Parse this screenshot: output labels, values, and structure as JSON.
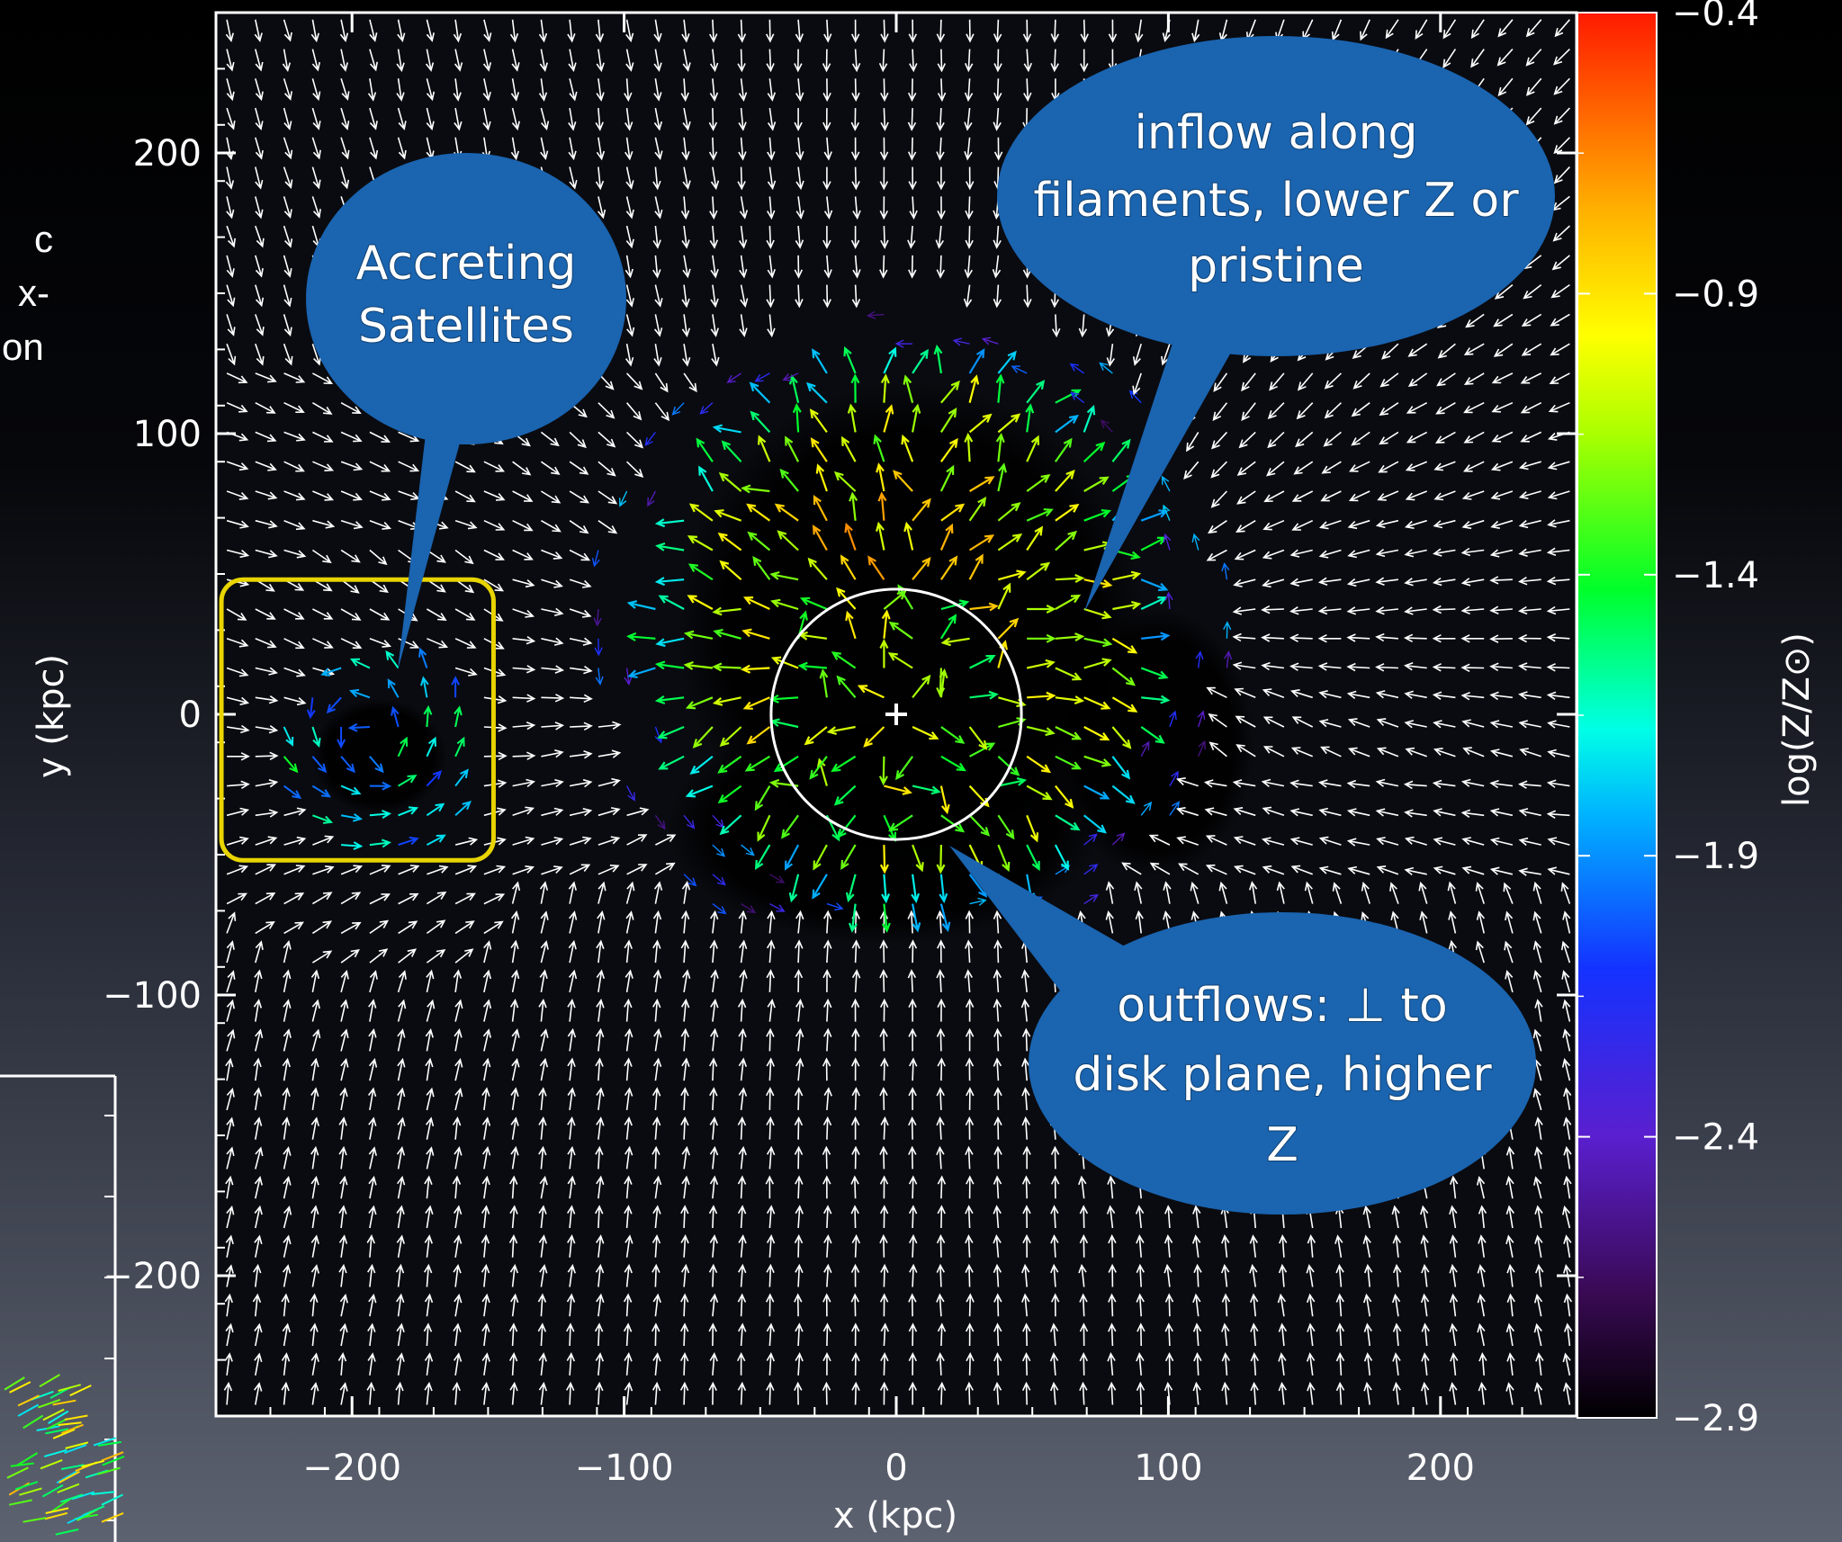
{
  "chart_data": {
    "type": "vector-field",
    "xlabel": "x (kpc)",
    "ylabel": "y (kpc)",
    "xlim": [
      -250,
      250
    ],
    "ylim": [
      -250,
      250
    ],
    "x_ticks": [
      -200,
      -100,
      0,
      100,
      200
    ],
    "y_ticks": [
      -200,
      -100,
      0,
      100,
      200
    ],
    "x_tick_labels": [
      "−200",
      "−100",
      "0",
      "100",
      "200"
    ],
    "y_tick_labels": [
      "−200",
      "−100",
      "0",
      "100",
      "200"
    ],
    "colorbar": {
      "label": "log(Z/Z⊙)",
      "range": [
        -2.9,
        -0.4
      ],
      "ticks": [
        -2.9,
        -2.4,
        -1.9,
        -1.4,
        -0.9,
        -0.4
      ],
      "tick_labels": [
        "−2.9",
        "−2.4",
        "−1.9",
        "−1.4",
        "−0.9",
        "−0.4"
      ]
    },
    "galaxy_center": [
      0,
      0
    ],
    "virial_circle_radius": 46,
    "inflow_convergence_point": [
      65,
      30
    ],
    "satellite_box": {
      "x": [
        -248,
        -148
      ],
      "y": [
        -52,
        48
      ]
    },
    "satellite_center": [
      -190,
      -15
    ],
    "enriched_region_center": [
      5,
      30
    ],
    "annotations": [
      {
        "id": "satellites",
        "lines": [
          "Accreting",
          "Satellites"
        ]
      },
      {
        "id": "inflow",
        "lines": [
          "inflow along",
          "filaments, lower Z or",
          "pristine"
        ]
      },
      {
        "id": "outflow",
        "lines": [
          "outflows: ⊥ to",
          "disk plane, higher",
          "Z"
        ]
      }
    ]
  },
  "side_text": [
    "c",
    "x-",
    "on"
  ],
  "colors": {
    "field_arrows": "#ffffff",
    "satellite_box": "#e8d400",
    "bubble_fill": "#1a64b0",
    "colorbar": [
      "#000000",
      "#3a0a55",
      "#5a1fcf",
      "#1432ff",
      "#00b4ff",
      "#00ffe6",
      "#00ff2a",
      "#aaff00",
      "#ffff00",
      "#ffb000",
      "#ff5a00",
      "#ff1a00"
    ]
  }
}
